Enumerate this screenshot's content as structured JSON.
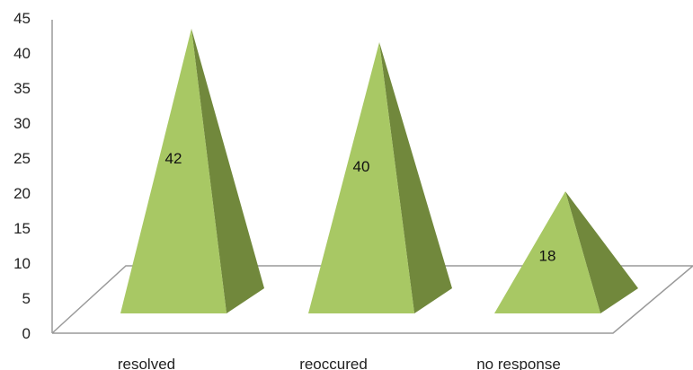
{
  "chart_data": {
    "type": "bar",
    "style": "3d-pyramid",
    "categories": [
      "resolved",
      "reoccured",
      "no response"
    ],
    "values": [
      42,
      40,
      18
    ],
    "data_labels": [
      "42",
      "40",
      "18"
    ],
    "yticks": [
      "0",
      "5",
      "10",
      "15",
      "20",
      "25",
      "30",
      "35",
      "40",
      "45"
    ],
    "ylim": [
      0,
      45
    ],
    "grid": false,
    "legend": "none",
    "colors": {
      "front": "#a8c864",
      "side": "#71883c",
      "floor": "#9a9a9a",
      "axis": "#9a9a9a"
    }
  }
}
